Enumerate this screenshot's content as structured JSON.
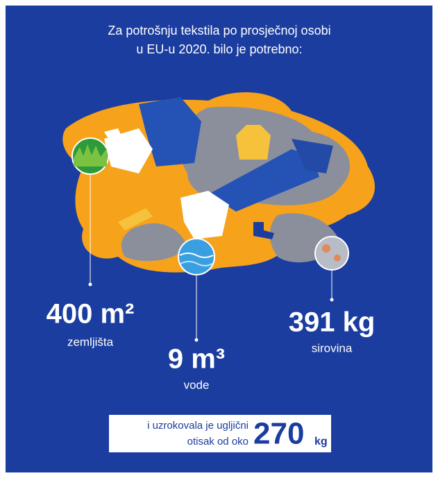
{
  "title": {
    "lines": [
      "Za potrošnju tekstila po prosječnoj osobi",
      "u EU-u 2020. bilo je potrebno:"
    ]
  },
  "stats": [
    {
      "value": "400 m²",
      "label": "zemljišta"
    },
    {
      "value": "9 m³",
      "label": "vode"
    },
    {
      "value": "391 kg",
      "label": "sirovina"
    }
  ],
  "footer": {
    "lines": [
      "i uzrokovala je ugljični",
      "otisak od oko"
    ],
    "value": "270",
    "unit": "kg"
  }
}
